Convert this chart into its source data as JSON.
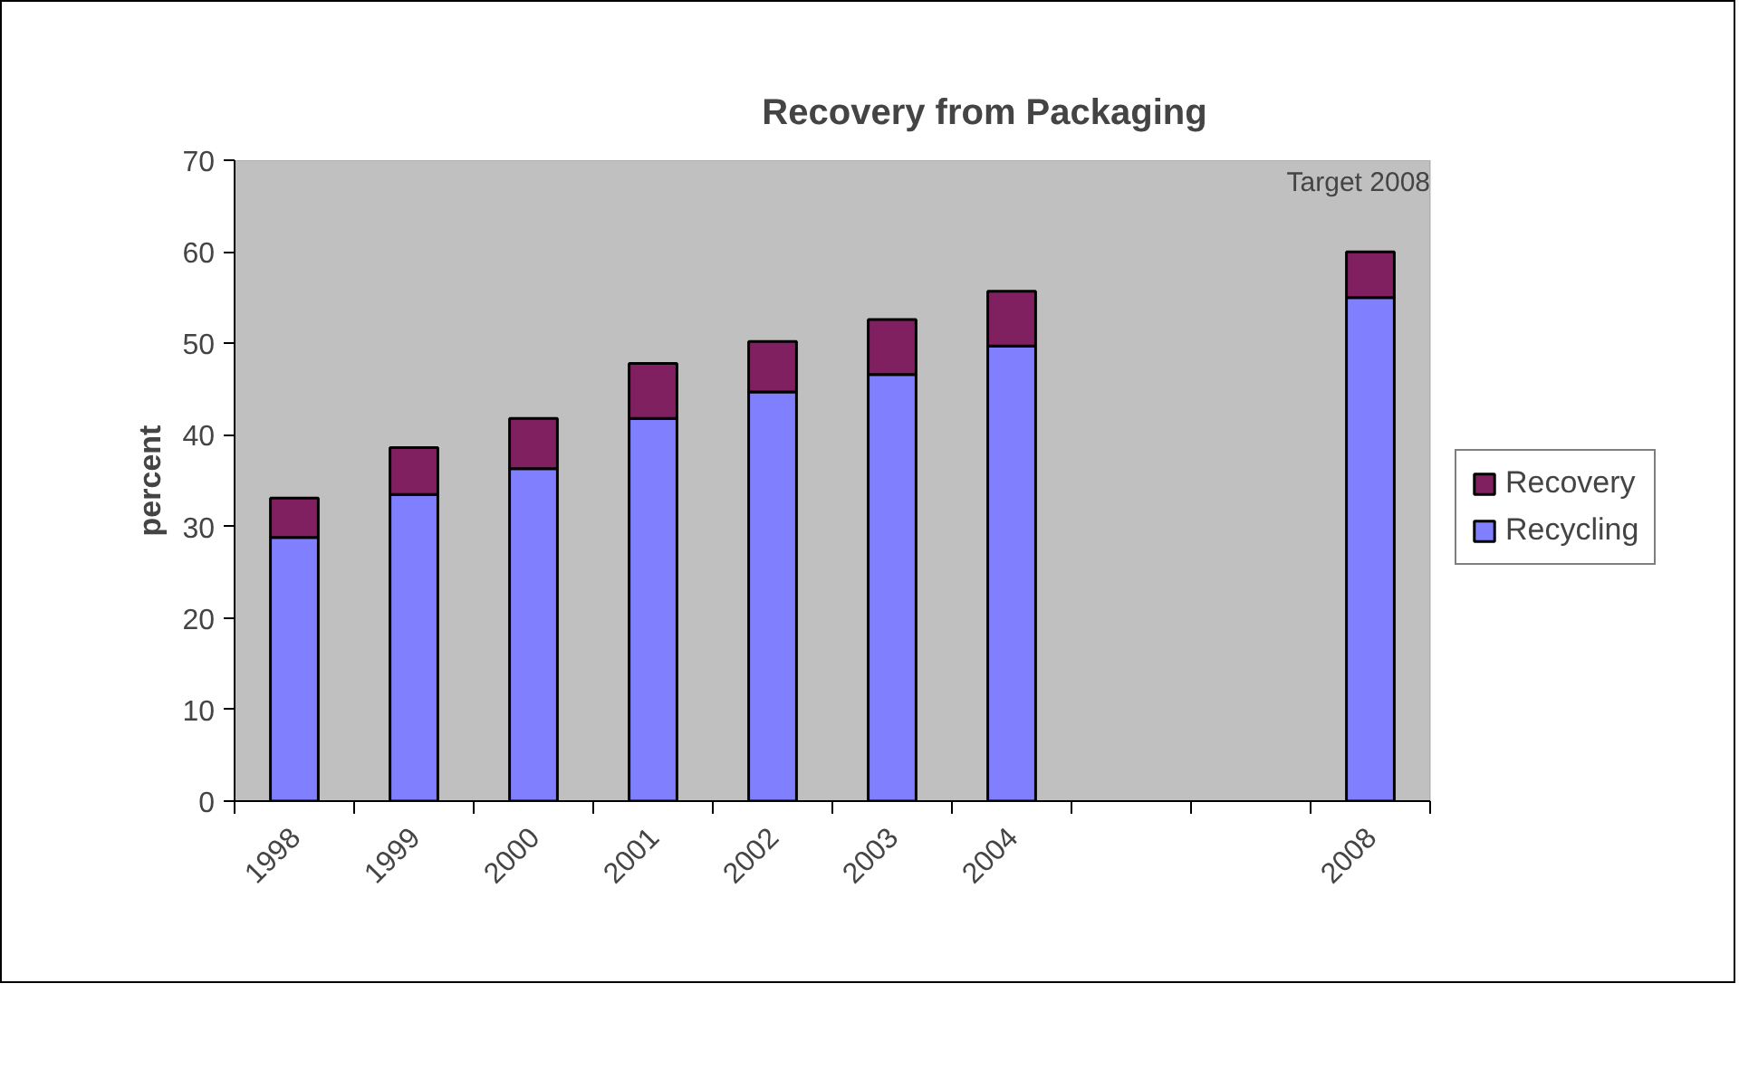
{
  "chart_data": {
    "type": "bar",
    "title": "Recovery from Packaging",
    "ylabel": "percent",
    "categories": [
      "1998",
      "1999",
      "2000",
      "2001",
      "2002",
      "2003",
      "2004",
      null,
      null,
      "2008"
    ],
    "series": [
      {
        "name": "Recycling",
        "color": "#8080ff",
        "values": [
          28.8,
          33.5,
          36.3,
          41.8,
          44.7,
          46.6,
          49.7,
          null,
          null,
          55
        ]
      },
      {
        "name": "Recovery",
        "color": "#802060",
        "values": [
          4.3,
          5.1,
          5.5,
          6.0,
          5.5,
          6.0,
          6.0,
          null,
          null,
          5
        ]
      }
    ],
    "stacked": true,
    "ylim": [
      0,
      70
    ],
    "yticks": [
      0,
      10,
      20,
      30,
      40,
      50,
      60,
      70
    ],
    "grid": false,
    "legend": "right",
    "annotations": [
      "Target 2008"
    ]
  }
}
